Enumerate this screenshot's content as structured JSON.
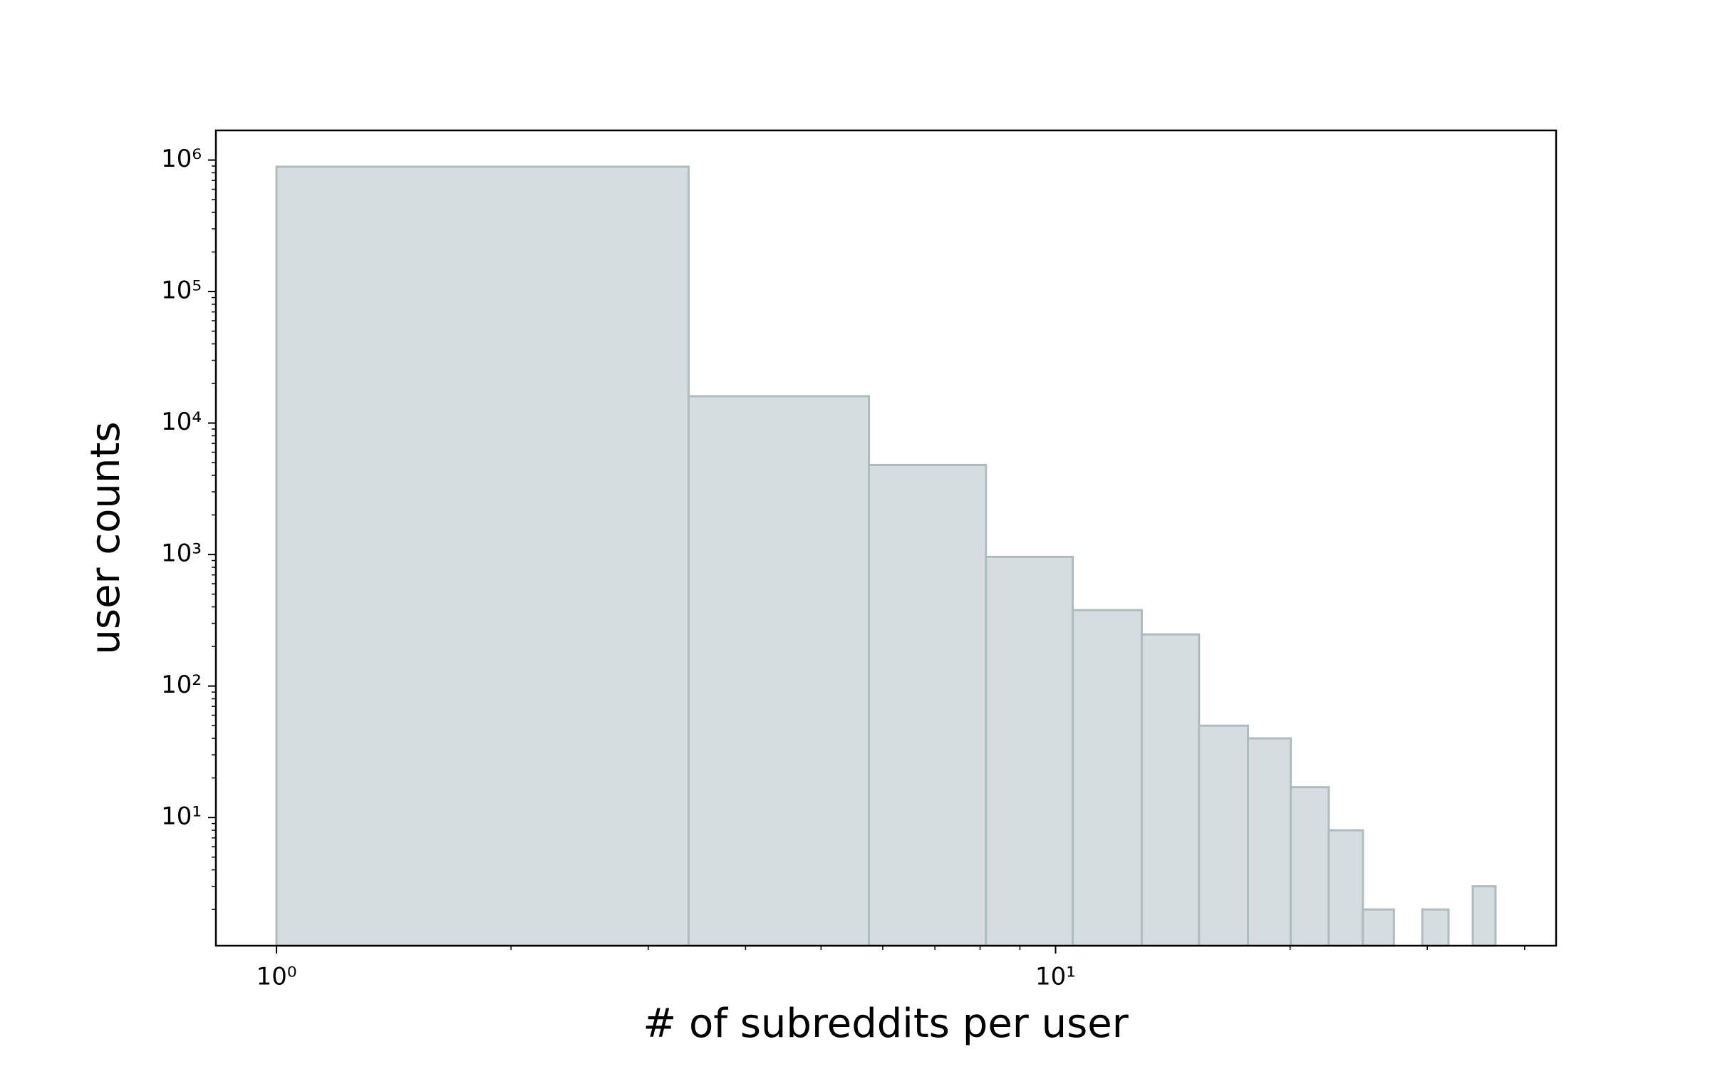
{
  "chart_data": {
    "type": "histogram",
    "xlabel": "# of subreddits per user",
    "ylabel": "user counts",
    "bins": [
      1,
      3.38,
      5.76,
      8.14,
      10.52,
      12.9,
      15.28,
      17.66,
      20.04,
      22.42,
      24.8,
      27.18,
      29.56,
      31.94,
      34.32,
      36.7
    ],
    "values": [
      890000,
      16000,
      4800,
      960,
      378,
      247,
      50,
      40,
      17,
      8,
      2,
      0,
      2,
      0,
      3
    ],
    "color": "#d5dde0",
    "edgecolor": "#aebcbd",
    "xscale": "log",
    "yscale": "log",
    "xlim": [
      0.836,
      43.9
    ],
    "ylim": [
      1.06,
      1680000
    ],
    "xticks": [
      {
        "value": 1,
        "label": "10⁰"
      },
      {
        "value": 10,
        "label": "10¹"
      }
    ],
    "xminorticks": [
      2,
      3,
      4,
      5,
      6,
      7,
      8,
      9,
      20,
      30,
      40
    ],
    "yticks": [
      {
        "value": 10,
        "label": "10¹"
      },
      {
        "value": 100,
        "label": "10²"
      },
      {
        "value": 1000,
        "label": "10³"
      },
      {
        "value": 10000,
        "label": "10⁴"
      },
      {
        "value": 100000,
        "label": "10⁵"
      },
      {
        "value": 1000000,
        "label": "10⁶"
      }
    ],
    "yminorticks": [
      2,
      3,
      4,
      5,
      6,
      7,
      8,
      9,
      20,
      30,
      40,
      50,
      60,
      70,
      80,
      90,
      200,
      300,
      400,
      500,
      600,
      700,
      800,
      900,
      2000,
      3000,
      4000,
      5000,
      6000,
      7000,
      8000,
      9000,
      20000,
      30000,
      40000,
      50000,
      60000,
      70000,
      80000,
      90000,
      200000,
      300000,
      400000,
      500000,
      600000,
      700000,
      800000,
      900000
    ]
  }
}
